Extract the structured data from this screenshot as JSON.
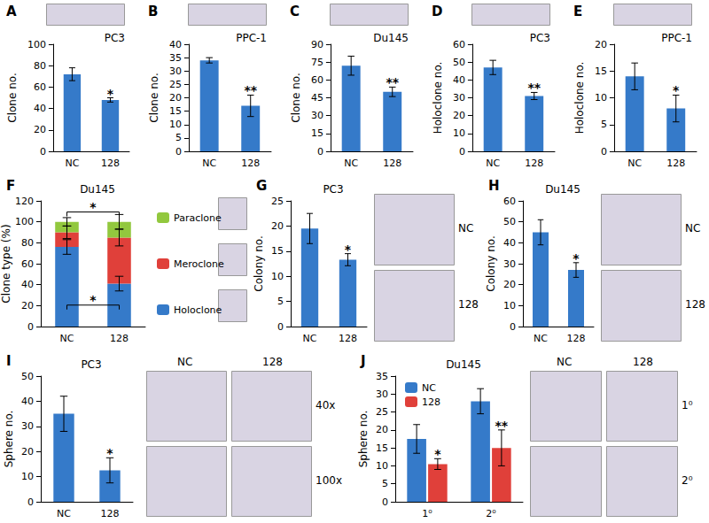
{
  "chart_data": [
    {
      "type": "bar",
      "title": "A",
      "subtitle": "PC3",
      "y_label": "Clone no.",
      "categories": [
        "NC",
        "128"
      ],
      "values": [
        72,
        48
      ],
      "errors": [
        6,
        2
      ],
      "significance": [
        null,
        "*"
      ],
      "color": "#357ac9",
      "ylim": [
        0,
        100
      ],
      "yticks": [
        0,
        20,
        40,
        60,
        80,
        100
      ],
      "grid": false
    },
    {
      "type": "bar",
      "title": "B",
      "subtitle": "PPC-1",
      "y_label": "Clone no.",
      "categories": [
        "NC",
        "128"
      ],
      "values": [
        34,
        17
      ],
      "errors": [
        1,
        4
      ],
      "significance": [
        null,
        "**"
      ],
      "color": "#357ac9",
      "ylim": [
        0,
        40
      ],
      "yticks": [
        0,
        5,
        10,
        15,
        20,
        25,
        30,
        35,
        40
      ],
      "grid": false
    },
    {
      "type": "bar",
      "title": "C",
      "subtitle": "Du145",
      "y_label": "Clone no.",
      "categories": [
        "NC",
        "128"
      ],
      "values": [
        72,
        50
      ],
      "errors": [
        8,
        4
      ],
      "significance": [
        null,
        "**"
      ],
      "color": "#357ac9",
      "ylim": [
        0,
        90
      ],
      "yticks": [
        0,
        15,
        30,
        45,
        60,
        75,
        90
      ],
      "grid": false
    },
    {
      "type": "bar",
      "title": "D",
      "subtitle": "PC3",
      "y_label": "Holoclone no.",
      "categories": [
        "NC",
        "128"
      ],
      "values": [
        47,
        31
      ],
      "errors": [
        4,
        2
      ],
      "significance": [
        null,
        "**"
      ],
      "color": "#357ac9",
      "ylim": [
        0,
        60
      ],
      "yticks": [
        0,
        10,
        20,
        30,
        40,
        50,
        60
      ],
      "grid": false
    },
    {
      "type": "bar",
      "title": "E",
      "subtitle": "PPC-1",
      "y_label": "Holoclone no.",
      "categories": [
        "NC",
        "128"
      ],
      "values": [
        14,
        8
      ],
      "errors": [
        2.5,
        2.5
      ],
      "significance": [
        null,
        "*"
      ],
      "color": "#357ac9",
      "ylim": [
        0,
        20
      ],
      "yticks": [
        0,
        5,
        10,
        15,
        20
      ],
      "grid": false
    },
    {
      "type": "bar",
      "title": "F",
      "subtitle": "Du145",
      "y_label": "Clone type (%)",
      "categories": [
        "NC",
        "128"
      ],
      "stacked": true,
      "legend": "right",
      "series": [
        {
          "name": "Holoclone",
          "color": "#357ac9",
          "values": [
            76,
            41
          ],
          "errors": [
            7,
            7
          ]
        },
        {
          "name": "Meroclone",
          "color": "#e0403a",
          "values": [
            14,
            44
          ],
          "errors": [
            6,
            8
          ]
        },
        {
          "name": "Paraclone",
          "color": "#92c83e",
          "values": [
            10,
            15
          ],
          "errors": [
            4,
            7
          ]
        }
      ],
      "comparisons": [
        {
          "series": "Holoclone",
          "label": "*"
        },
        {
          "series": "Paraclone",
          "label": "*"
        }
      ],
      "ylim": [
        0,
        120
      ],
      "yticks": [
        0,
        20,
        40,
        60,
        80,
        100,
        120
      ],
      "grid": false
    },
    {
      "type": "bar",
      "title": "G",
      "subtitle": "PC3",
      "y_label": "Colony no.",
      "categories": [
        "NC",
        "128"
      ],
      "values": [
        19.5,
        13.3
      ],
      "errors": [
        3,
        1.2
      ],
      "significance": [
        null,
        "*"
      ],
      "color": "#357ac9",
      "ylim": [
        0,
        25
      ],
      "yticks": [
        0,
        5,
        10,
        15,
        20,
        25
      ],
      "grid": false,
      "photo_labels": {
        "rows": [
          "NC",
          "128"
        ]
      }
    },
    {
      "type": "bar",
      "title": "H",
      "subtitle": "Du145",
      "y_label": "Colony no.",
      "categories": [
        "NC",
        "128"
      ],
      "values": [
        45,
        27
      ],
      "errors": [
        6,
        3.5
      ],
      "significance": [
        null,
        "*"
      ],
      "color": "#357ac9",
      "ylim": [
        0,
        60
      ],
      "yticks": [
        0,
        10,
        20,
        30,
        40,
        50,
        60
      ],
      "grid": false,
      "photo_labels": {
        "rows": [
          "NC",
          "128"
        ]
      }
    },
    {
      "type": "bar",
      "title": "I",
      "subtitle": "PC3",
      "y_label": "Sphere no.",
      "categories": [
        "NC",
        "128"
      ],
      "values": [
        35,
        12.5
      ],
      "errors": [
        7,
        5
      ],
      "significance": [
        null,
        "*"
      ],
      "color": "#357ac9",
      "ylim": [
        0,
        50
      ],
      "yticks": [
        0,
        10,
        20,
        30,
        40,
        50
      ],
      "grid": false,
      "photo_labels": {
        "columns": [
          "NC",
          "128"
        ],
        "rows": [
          "40x",
          "100x"
        ]
      }
    },
    {
      "type": "bar",
      "title": "J",
      "subtitle": "Du145",
      "y_label": "Sphere no.",
      "categories": [
        "1⁰",
        "2⁰"
      ],
      "legend": "upper left",
      "series": [
        {
          "name": "NC",
          "color": "#357ac9",
          "values": [
            17.5,
            28
          ],
          "errors": [
            4,
            3.5
          ],
          "significance": [
            null,
            null
          ]
        },
        {
          "name": "128",
          "color": "#e0403a",
          "values": [
            10.5,
            15
          ],
          "errors": [
            1.5,
            5
          ],
          "significance": [
            "*",
            "**"
          ]
        }
      ],
      "ylim": [
        0,
        35
      ],
      "yticks": [
        0,
        5,
        10,
        15,
        20,
        25,
        30,
        35
      ],
      "grid": false,
      "photo_labels": {
        "columns": [
          "NC",
          "128"
        ],
        "rows": [
          "1⁰",
          "2⁰"
        ]
      }
    }
  ]
}
